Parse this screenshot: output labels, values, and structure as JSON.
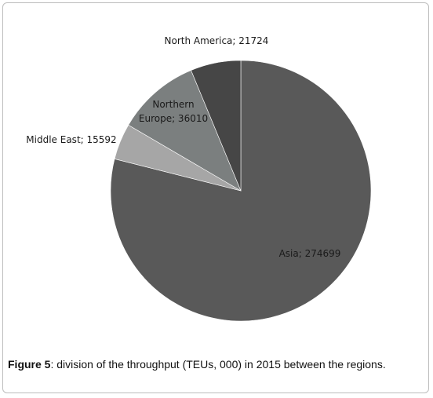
{
  "chart_data": {
    "type": "pie",
    "slices": [
      {
        "label": "Asia; 274699",
        "name": "Asia",
        "value": 274699,
        "color": "#595959"
      },
      {
        "label": "Middle East; 15592",
        "name": "Middle East",
        "value": 15592,
        "color": "#a6a6a6"
      },
      {
        "label": "Northern Europe; 36010",
        "label_lines": [
          "Northern",
          "Europe; 36010"
        ],
        "name": "Northern Europe",
        "value": 36010,
        "color": "#7b7f7f"
      },
      {
        "label": "North America; 21724",
        "name": "North America",
        "value": 21724,
        "color": "#464646"
      }
    ],
    "start_angle_deg": 0,
    "direction": "clockwise",
    "legend": "none"
  },
  "caption": {
    "label": "Figure 5",
    "text": ": division of the throughput (TEUs, 000) in 2015 between the regions."
  }
}
